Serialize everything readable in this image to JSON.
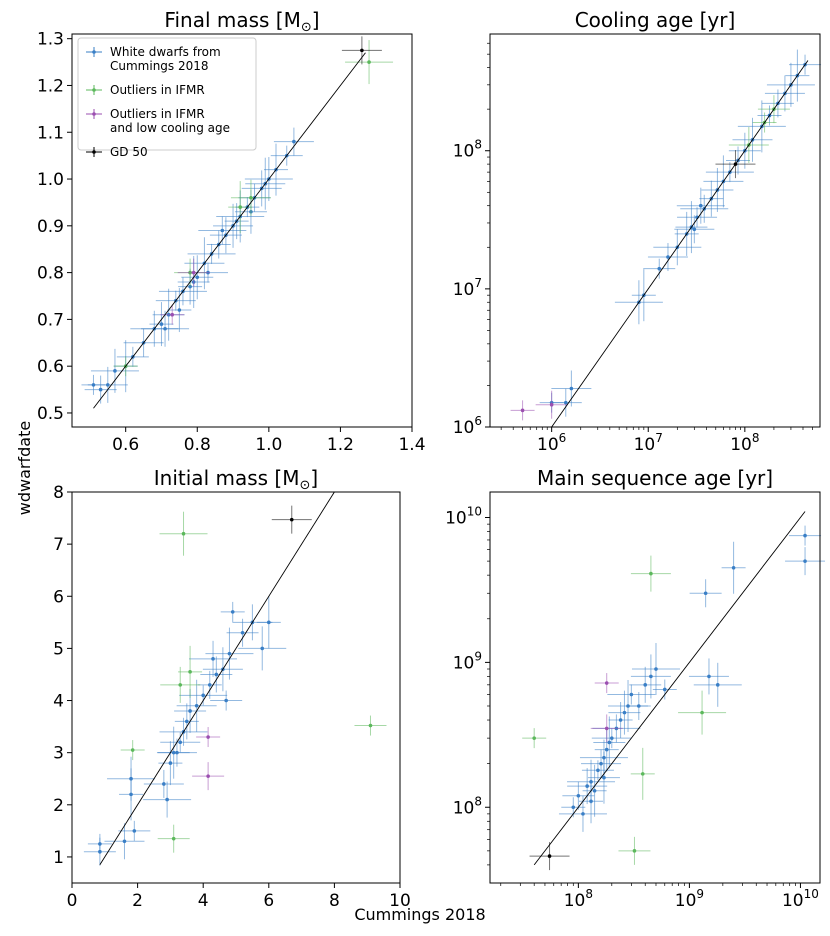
{
  "figure": {
    "ylabel": "wdwarfdate",
    "xlabel": "Cummings 2018"
  },
  "legend": {
    "placement": "top-left",
    "entries": [
      {
        "lines": [
          "White dwarfs from",
          "Cummings 2018"
        ],
        "color": "#3a7fc6"
      },
      {
        "lines": [
          "Outliers in IFMR"
        ],
        "color": "#5cb85c"
      },
      {
        "lines": [
          "Outliers in IFMR",
          "and low cooling age"
        ],
        "color": "#9b4fb0"
      },
      {
        "lines": [
          "GD 50"
        ],
        "color": "#000000"
      }
    ]
  },
  "colors": {
    "main": "#3a7fc6",
    "outlier": "#5cb85c",
    "outlier_low_age": "#9b4fb0",
    "gd50": "#000000",
    "one_to_one_line": "#000000"
  },
  "chart_data": [
    {
      "id": "final_mass",
      "type": "scatter",
      "title_main": "Final mass [M",
      "title_sub": "⊙",
      "title_end": "]",
      "xscale": "linear",
      "yscale": "linear",
      "xlim": [
        0.45,
        1.4
      ],
      "ylim": [
        0.47,
        1.31
      ],
      "xticks": [
        0.6,
        0.8,
        1.0,
        1.2,
        1.4
      ],
      "xtick_labels": [
        "0.6",
        "0.8",
        "1.0",
        "1.2",
        "1.4"
      ],
      "yticks": [
        0.5,
        0.6,
        0.7,
        0.8,
        0.9,
        1.0,
        1.1,
        1.2,
        1.3
      ],
      "ytick_labels": [
        "0.5",
        "0.6",
        "0.7",
        "0.8",
        "0.9",
        "1.0",
        "1.1",
        "1.2",
        "1.3"
      ],
      "line": [
        [
          0.51,
          0.51
        ],
        [
          1.27,
          1.27
        ]
      ],
      "series": [
        {
          "group": "main",
          "points": [
            [
              0.51,
              0.56
            ],
            [
              0.53,
              0.55
            ],
            [
              0.55,
              0.56
            ],
            [
              0.57,
              0.59
            ],
            [
              0.6,
              0.6
            ],
            [
              0.62,
              0.62
            ],
            [
              0.65,
              0.65
            ],
            [
              0.68,
              0.68
            ],
            [
              0.7,
              0.69
            ],
            [
              0.72,
              0.71
            ],
            [
              0.74,
              0.74
            ],
            [
              0.76,
              0.76
            ],
            [
              0.78,
              0.77
            ],
            [
              0.8,
              0.79
            ],
            [
              0.82,
              0.82
            ],
            [
              0.84,
              0.84
            ],
            [
              0.86,
              0.86
            ],
            [
              0.88,
              0.88
            ],
            [
              0.9,
              0.9
            ],
            [
              0.92,
              0.92
            ],
            [
              0.94,
              0.94
            ],
            [
              0.96,
              0.96
            ],
            [
              0.98,
              0.98
            ],
            [
              1.0,
              1.0
            ],
            [
              1.02,
              1.02
            ],
            [
              1.05,
              1.05
            ],
            [
              1.07,
              1.08
            ],
            [
              0.71,
              0.68
            ],
            [
              0.75,
              0.72
            ],
            [
              0.79,
              0.78
            ],
            [
              0.83,
              0.8
            ],
            [
              0.87,
              0.89
            ],
            [
              0.91,
              0.91
            ],
            [
              0.95,
              0.93
            ],
            [
              0.99,
              0.99
            ]
          ]
        },
        {
          "group": "outlier",
          "points": [
            [
              0.6,
              0.6
            ],
            [
              0.78,
              0.8
            ],
            [
              0.95,
              0.96
            ],
            [
              1.28,
              1.25
            ],
            [
              0.92,
              0.94
            ]
          ]
        },
        {
          "group": "outlier_low_age",
          "points": [
            [
              0.73,
              0.71
            ],
            [
              0.79,
              0.8
            ]
          ]
        },
        {
          "group": "gd50",
          "points": [
            [
              1.26,
              1.275
            ]
          ]
        }
      ]
    },
    {
      "id": "cooling_age",
      "type": "scatter",
      "title_main": "Cooling age [yr]",
      "xscale": "log",
      "yscale": "log",
      "xlim": [
        230000,
        600000000
      ],
      "ylim": [
        1000000,
        700000000
      ],
      "xticks": [
        1000000,
        10000000,
        100000000
      ],
      "xtick_labels": [
        [
          "10",
          "6"
        ],
        [
          "10",
          "7"
        ],
        [
          "10",
          "8"
        ]
      ],
      "yticks": [
        1000000,
        10000000,
        100000000
      ],
      "ytick_labels": [
        [
          "10",
          "6"
        ],
        [
          "10",
          "7"
        ],
        [
          "10",
          "8"
        ]
      ],
      "line": [
        [
          1000000,
          1000000
        ],
        [
          450000000,
          450000000
        ]
      ],
      "series": [
        {
          "group": "main",
          "points": [
            [
              1000000,
              1500000
            ],
            [
              1400000,
              1500000
            ],
            [
              1600000,
              1900000
            ],
            [
              8000000,
              8000000
            ],
            [
              9000000,
              9000000
            ],
            [
              13000000,
              14000000
            ],
            [
              16000000,
              17000000
            ],
            [
              20000000,
              20000000
            ],
            [
              25000000,
              25000000
            ],
            [
              28000000,
              28000000
            ],
            [
              32000000,
              33000000
            ],
            [
              38000000,
              38000000
            ],
            [
              45000000,
              45000000
            ],
            [
              52000000,
              52000000
            ],
            [
              60000000,
              60000000
            ],
            [
              70000000,
              70000000
            ],
            [
              85000000,
              85000000
            ],
            [
              100000000,
              100000000
            ],
            [
              120000000,
              120000000
            ],
            [
              150000000,
              150000000
            ],
            [
              180000000,
              180000000
            ],
            [
              220000000,
              220000000
            ],
            [
              260000000,
              260000000
            ],
            [
              300000000,
              300000000
            ],
            [
              350000000,
              350000000
            ],
            [
              420000000,
              420000000
            ],
            [
              30000000,
              27000000
            ],
            [
              35000000,
              40000000
            ]
          ]
        },
        {
          "group": "outlier",
          "points": [
            [
              160000000,
              160000000
            ],
            [
              200000000,
              200000000
            ],
            [
              110000000,
              110000000
            ]
          ]
        },
        {
          "group": "outlier_low_age",
          "points": [
            [
              500000,
              1320000
            ],
            [
              1000000,
              1450000
            ]
          ]
        },
        {
          "group": "gd50",
          "points": [
            [
              80000000,
              80000000
            ]
          ]
        }
      ]
    },
    {
      "id": "initial_mass",
      "type": "scatter",
      "title_main": "Initial mass [M",
      "title_sub": "⊙",
      "title_end": "]",
      "xscale": "linear",
      "yscale": "linear",
      "xlim": [
        0,
        10
      ],
      "ylim": [
        0.5,
        8
      ],
      "xticks": [
        0,
        2,
        4,
        6,
        8,
        10
      ],
      "xtick_labels": [
        "0",
        "2",
        "4",
        "6",
        "8",
        "10"
      ],
      "yticks": [
        1,
        2,
        3,
        4,
        5,
        6,
        7,
        8
      ],
      "ytick_labels": [
        "1",
        "2",
        "3",
        "4",
        "5",
        "6",
        "7",
        "8"
      ],
      "line": [
        [
          0.85,
          0.85
        ],
        [
          8,
          8
        ]
      ],
      "series": [
        {
          "group": "main",
          "points": [
            [
              0.85,
              1.25
            ],
            [
              0.85,
              1.1
            ],
            [
              1.6,
              1.3
            ],
            [
              1.8,
              2.5
            ],
            [
              1.8,
              2.2
            ],
            [
              1.9,
              1.5
            ],
            [
              2.8,
              2.4
            ],
            [
              2.9,
              2.1
            ],
            [
              3.0,
              2.8
            ],
            [
              3.1,
              3.0
            ],
            [
              3.3,
              3.2
            ],
            [
              3.4,
              3.4
            ],
            [
              3.5,
              3.6
            ],
            [
              3.6,
              3.8
            ],
            [
              3.8,
              3.9
            ],
            [
              4.0,
              4.1
            ],
            [
              4.2,
              4.3
            ],
            [
              4.4,
              4.5
            ],
            [
              4.6,
              4.6
            ],
            [
              4.8,
              4.9
            ],
            [
              4.9,
              5.7
            ],
            [
              5.2,
              5.3
            ],
            [
              5.5,
              5.5
            ],
            [
              5.8,
              5.0
            ],
            [
              6.0,
              5.5
            ],
            [
              4.7,
              4.0
            ],
            [
              3.2,
              3.0
            ],
            [
              4.3,
              4.8
            ]
          ]
        },
        {
          "group": "outlier",
          "points": [
            [
              1.85,
              3.05
            ],
            [
              3.1,
              1.35
            ],
            [
              3.3,
              4.3
            ],
            [
              3.4,
              7.2
            ],
            [
              3.6,
              4.55
            ],
            [
              9.1,
              3.52
            ]
          ]
        },
        {
          "group": "outlier_low_age",
          "points": [
            [
              4.15,
              3.3
            ],
            [
              4.15,
              2.55
            ]
          ]
        },
        {
          "group": "gd50",
          "points": [
            [
              6.7,
              7.47
            ]
          ]
        }
      ]
    },
    {
      "id": "ms_age",
      "type": "scatter",
      "title_main": "Main sequence age [yr]",
      "xscale": "log",
      "yscale": "log",
      "xlim": [
        16000000,
        15000000000
      ],
      "ylim": [
        30000000,
        15000000000
      ],
      "xticks": [
        100000000,
        1000000000,
        10000000000
      ],
      "xtick_labels": [
        [
          "10",
          "8"
        ],
        [
          "10",
          "9"
        ],
        [
          "10",
          "10"
        ]
      ],
      "yticks": [
        100000000,
        1000000000,
        10000000000
      ],
      "ytick_labels": [
        [
          "10",
          "8"
        ],
        [
          "10",
          "9"
        ],
        [
          "10",
          "10"
        ]
      ],
      "line": [
        [
          40000000,
          40000000
        ],
        [
          11000000000,
          11000000000
        ]
      ],
      "series": [
        {
          "group": "main",
          "points": [
            [
              90000000,
              100000000
            ],
            [
              100000000,
              120000000
            ],
            [
              120000000,
              140000000
            ],
            [
              130000000,
              150000000
            ],
            [
              140000000,
              130000000
            ],
            [
              150000000,
              180000000
            ],
            [
              160000000,
              200000000
            ],
            [
              170000000,
              220000000
            ],
            [
              180000000,
              250000000
            ],
            [
              190000000,
              280000000
            ],
            [
              200000000,
              300000000
            ],
            [
              220000000,
              350000000
            ],
            [
              240000000,
              400000000
            ],
            [
              260000000,
              450000000
            ],
            [
              280000000,
              500000000
            ],
            [
              300000000,
              600000000
            ],
            [
              350000000,
              500000000
            ],
            [
              400000000,
              700000000
            ],
            [
              450000000,
              800000000
            ],
            [
              500000000,
              900000000
            ],
            [
              600000000,
              650000000
            ],
            [
              1400000000,
              3000000000
            ],
            [
              1500000000,
              800000000
            ],
            [
              1800000000,
              700000000
            ],
            [
              2500000000,
              4500000000
            ],
            [
              11000000000,
              7500000000
            ],
            [
              11000000000,
              5000000000
            ],
            [
              110000000,
              90000000
            ],
            [
              130000000,
              110000000
            ],
            [
              170000000,
              160000000
            ]
          ]
        },
        {
          "group": "outlier",
          "points": [
            [
              40000000,
              300000000
            ],
            [
              320000000,
              50000000
            ],
            [
              450000000,
              4100000000
            ],
            [
              1300000000,
              450000000
            ],
            [
              380000000,
              170000000
            ]
          ]
        },
        {
          "group": "outlier_low_age",
          "points": [
            [
              180000000,
              720000000
            ],
            [
              180000000,
              350000000
            ]
          ]
        },
        {
          "group": "gd50",
          "points": [
            [
              55000000,
              46000000
            ]
          ]
        }
      ]
    }
  ]
}
